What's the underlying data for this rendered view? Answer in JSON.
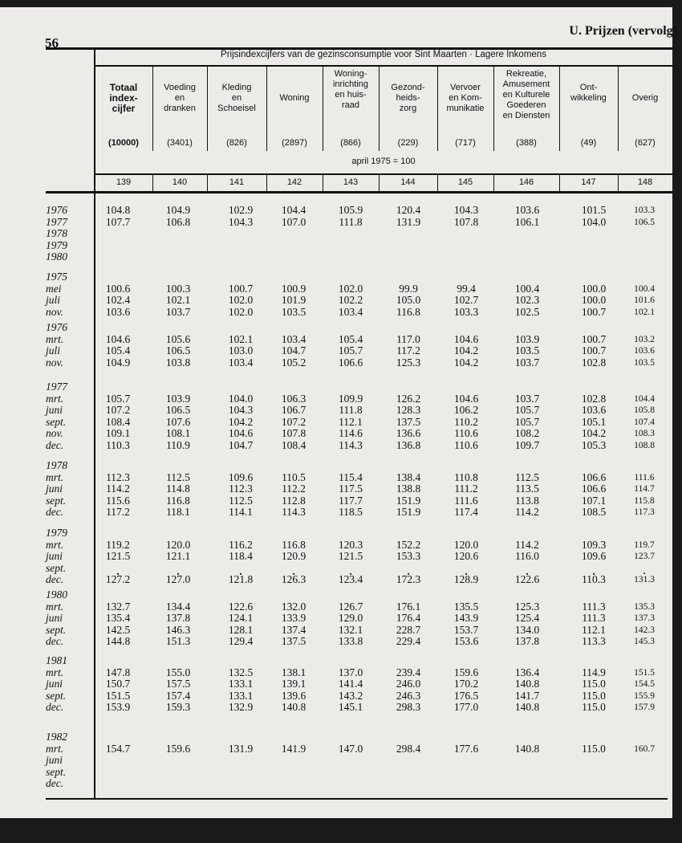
{
  "page_number": "56",
  "section_title": "U. Prijzen (vervolg)",
  "table_title": "Prijsindexcijfers van de gezinsconsumptie voor Sint Maarten  ·  Lagere Inkomens",
  "base_note": "april 1975 = 100",
  "columns": [
    {
      "label": "Totaal\nindex-\ncijfer",
      "weight": "(10000)",
      "code": "139",
      "bold": true
    },
    {
      "label": "Voeding\nen\ndranken",
      "weight": "(3401)",
      "code": "140"
    },
    {
      "label": "Kleding\nen\nSchoeisel",
      "weight": "(826)",
      "code": "141"
    },
    {
      "label": "Woning",
      "weight": "(2897)",
      "code": "142"
    },
    {
      "label": "Woning-\ninrichting\nen huis-\nraad",
      "weight": "(866)",
      "code": "143"
    },
    {
      "label": "Gezond-\nheids-\nzorg",
      "weight": "(229)",
      "code": "144"
    },
    {
      "label": "Vervoer\nen Kom-\nmunikatie",
      "weight": "(717)",
      "code": "145"
    },
    {
      "label": "Rekreatie,\nAmusement\nen Kulturele\nGoederen\nen Diensten",
      "weight": "(388)",
      "code": "146"
    },
    {
      "label": "Ont-\nwikkeling",
      "weight": "(49)",
      "code": "147"
    },
    {
      "label": "Overig",
      "weight": "(627)",
      "code": "148"
    }
  ],
  "groups": [
    {
      "year": "",
      "rows": [
        {
          "label": "1976",
          "values": [
            "104.8",
            "104.9",
            "102.9",
            "104.4",
            "105.9",
            "120.4",
            "104.3",
            "103.6",
            "101.5",
            "103.3"
          ]
        },
        {
          "label": "1977",
          "values": [
            "107.7",
            "106.8",
            "104.3",
            "107.0",
            "111.8",
            "131.9",
            "107.8",
            "106.1",
            "104.0",
            "106.5"
          ]
        },
        {
          "label": "1978",
          "values": []
        },
        {
          "label": "1979",
          "values": []
        },
        {
          "label": "1980",
          "values": []
        }
      ]
    },
    {
      "year": "1975",
      "rows": [
        {
          "label": "mei",
          "values": [
            "100.6",
            "100.3",
            "100.7",
            "100.9",
            "102.0",
            "99.9",
            "99.4",
            "100.4",
            "100.0",
            "100.4"
          ]
        },
        {
          "label": "juli",
          "values": [
            "102.4",
            "102.1",
            "102.0",
            "101.9",
            "102.2",
            "105.0",
            "102.7",
            "102.3",
            "100.0",
            "101.6"
          ]
        },
        {
          "label": "nov.",
          "values": [
            "103.6",
            "103.7",
            "102.0",
            "103.5",
            "103.4",
            "116.8",
            "103.3",
            "102.5",
            "100.7",
            "102.1"
          ]
        }
      ]
    },
    {
      "year": "1976",
      "rows": [
        {
          "label": "mrt.",
          "values": [
            "104.6",
            "105.6",
            "102.1",
            "103.4",
            "105.4",
            "117.0",
            "104.6",
            "103.9",
            "100.7",
            "103.2"
          ]
        },
        {
          "label": "juli",
          "values": [
            "105.4",
            "106.5",
            "103.0",
            "104.7",
            "105.7",
            "117.2",
            "104.2",
            "103.5",
            "100.7",
            "103.6"
          ]
        },
        {
          "label": "nov.",
          "values": [
            "104.9",
            "103.8",
            "103.4",
            "105.2",
            "106.6",
            "125.3",
            "104.2",
            "103.7",
            "102.8",
            "103.5"
          ]
        }
      ]
    },
    {
      "year": "1977",
      "rows": [
        {
          "label": "mrt.",
          "values": [
            "105.7",
            "103.9",
            "104.0",
            "106.3",
            "109.9",
            "126.2",
            "104.6",
            "103.7",
            "102.8",
            "104.4"
          ]
        },
        {
          "label": "juni",
          "values": [
            "107.2",
            "106.5",
            "104.3",
            "106.7",
            "111.8",
            "128.3",
            "106.2",
            "105.7",
            "103.6",
            "105.8"
          ]
        },
        {
          "label": "sept.",
          "values": [
            "108.4",
            "107.6",
            "104.2",
            "107.2",
            "112.1",
            "137.5",
            "110.2",
            "105.7",
            "105.1",
            "107.4"
          ]
        },
        {
          "label": "nov.",
          "values": [
            "109.1",
            "108.1",
            "104.6",
            "107.8",
            "114.6",
            "136.6",
            "110.6",
            "108.2",
            "104.2",
            "108.3"
          ]
        },
        {
          "label": "dec.",
          "values": [
            "110.3",
            "110.9",
            "104.7",
            "108.4",
            "114.3",
            "136.8",
            "110.6",
            "109.7",
            "105.3",
            "108.8"
          ]
        }
      ]
    },
    {
      "year": "1978",
      "rows": [
        {
          "label": "mrt.",
          "values": [
            "112.3",
            "112.5",
            "109.6",
            "110.5",
            "115.4",
            "138.4",
            "110.8",
            "112.5",
            "106.6",
            "111.6"
          ]
        },
        {
          "label": "juni",
          "values": [
            "114.2",
            "114.8",
            "112.3",
            "112.2",
            "117.5",
            "138.8",
            "111.2",
            "113.5",
            "106.6",
            "114.7"
          ]
        },
        {
          "label": "sept.",
          "values": [
            "115.6",
            "116.8",
            "112.5",
            "112.8",
            "117.7",
            "151.9",
            "111.6",
            "113.8",
            "107.1",
            "115.8"
          ]
        },
        {
          "label": "dec.",
          "values": [
            "117.2",
            "118.1",
            "114.1",
            "114.3",
            "118.5",
            "151.9",
            "117.4",
            "114.2",
            "108.5",
            "117.3"
          ]
        }
      ]
    },
    {
      "year": "1979",
      "rows": [
        {
          "label": "mrt.",
          "values": [
            "119.2",
            "120.0",
            "116.2",
            "116.8",
            "120.3",
            "152.2",
            "120.0",
            "114.2",
            "109.3",
            "119.7"
          ]
        },
        {
          "label": "juni",
          "values": [
            "121.5",
            "121.1",
            "118.4",
            "120.9",
            "121.5",
            "153.3",
            "120.6",
            "116.0",
            "109.6",
            "123.7"
          ]
        },
        {
          "label": "sept.",
          "values": [
            ".",
            ".",
            ".",
            ".",
            ".",
            ".",
            ".",
            ".",
            ".",
            "."
          ]
        },
        {
          "label": "dec.",
          "values": [
            "127.2",
            "127.0",
            "121.8",
            "126.3",
            "123.4",
            "172.3",
            "128.9",
            "122.6",
            "110.3",
            "131.3"
          ]
        }
      ]
    },
    {
      "year": "1980",
      "rows": [
        {
          "label": "mrt.",
          "values": [
            "132.7",
            "134.4",
            "122.6",
            "132.0",
            "126.7",
            "176.1",
            "135.5",
            "125.3",
            "111.3",
            "135.3"
          ]
        },
        {
          "label": "juni",
          "values": [
            "135.4",
            "137.8",
            "124.1",
            "133.9",
            "129.0",
            "176.4",
            "143.9",
            "125.4",
            "111.3",
            "137.3"
          ]
        },
        {
          "label": "sept.",
          "values": [
            "142.5",
            "146.3",
            "128.1",
            "137.4",
            "132.1",
            "228.7",
            "153.7",
            "134.0",
            "112.1",
            "142.3"
          ]
        },
        {
          "label": "dec.",
          "values": [
            "144.8",
            "151.3",
            "129.4",
            "137.5",
            "133.8",
            "229.4",
            "153.6",
            "137.8",
            "113.3",
            "145.3"
          ]
        }
      ]
    },
    {
      "year": "1981",
      "rows": [
        {
          "label": "mrt.",
          "values": [
            "147.8",
            "155.0",
            "132.5",
            "138.1",
            "137.0",
            "239.4",
            "159.6",
            "136.4",
            "114.9",
            "151.5"
          ]
        },
        {
          "label": "juni",
          "values": [
            "150.7",
            "157.5",
            "133.1",
            "139.1",
            "141.4",
            "246.0",
            "170.2",
            "140.8",
            "115.0",
            "154.5"
          ]
        },
        {
          "label": "sept.",
          "values": [
            "151.5",
            "157.4",
            "133.1",
            "139.6",
            "143.2",
            "246.3",
            "176.5",
            "141.7",
            "115.0",
            "155.9"
          ]
        },
        {
          "label": "dec.",
          "values": [
            "153.9",
            "159.3",
            "132.9",
            "140.8",
            "145.1",
            "298.3",
            "177.0",
            "140.8",
            "115.0",
            "157.9"
          ]
        }
      ]
    },
    {
      "year": "1982",
      "rows": [
        {
          "label": "mrt.",
          "values": [
            "154.7",
            "159.6",
            "131.9",
            "141.9",
            "147.0",
            "298.4",
            "177.6",
            "140.8",
            "115.0",
            "160.7"
          ]
        },
        {
          "label": "juni",
          "values": []
        },
        {
          "label": "sept.",
          "values": []
        },
        {
          "label": "dec.",
          "values": []
        }
      ]
    }
  ]
}
